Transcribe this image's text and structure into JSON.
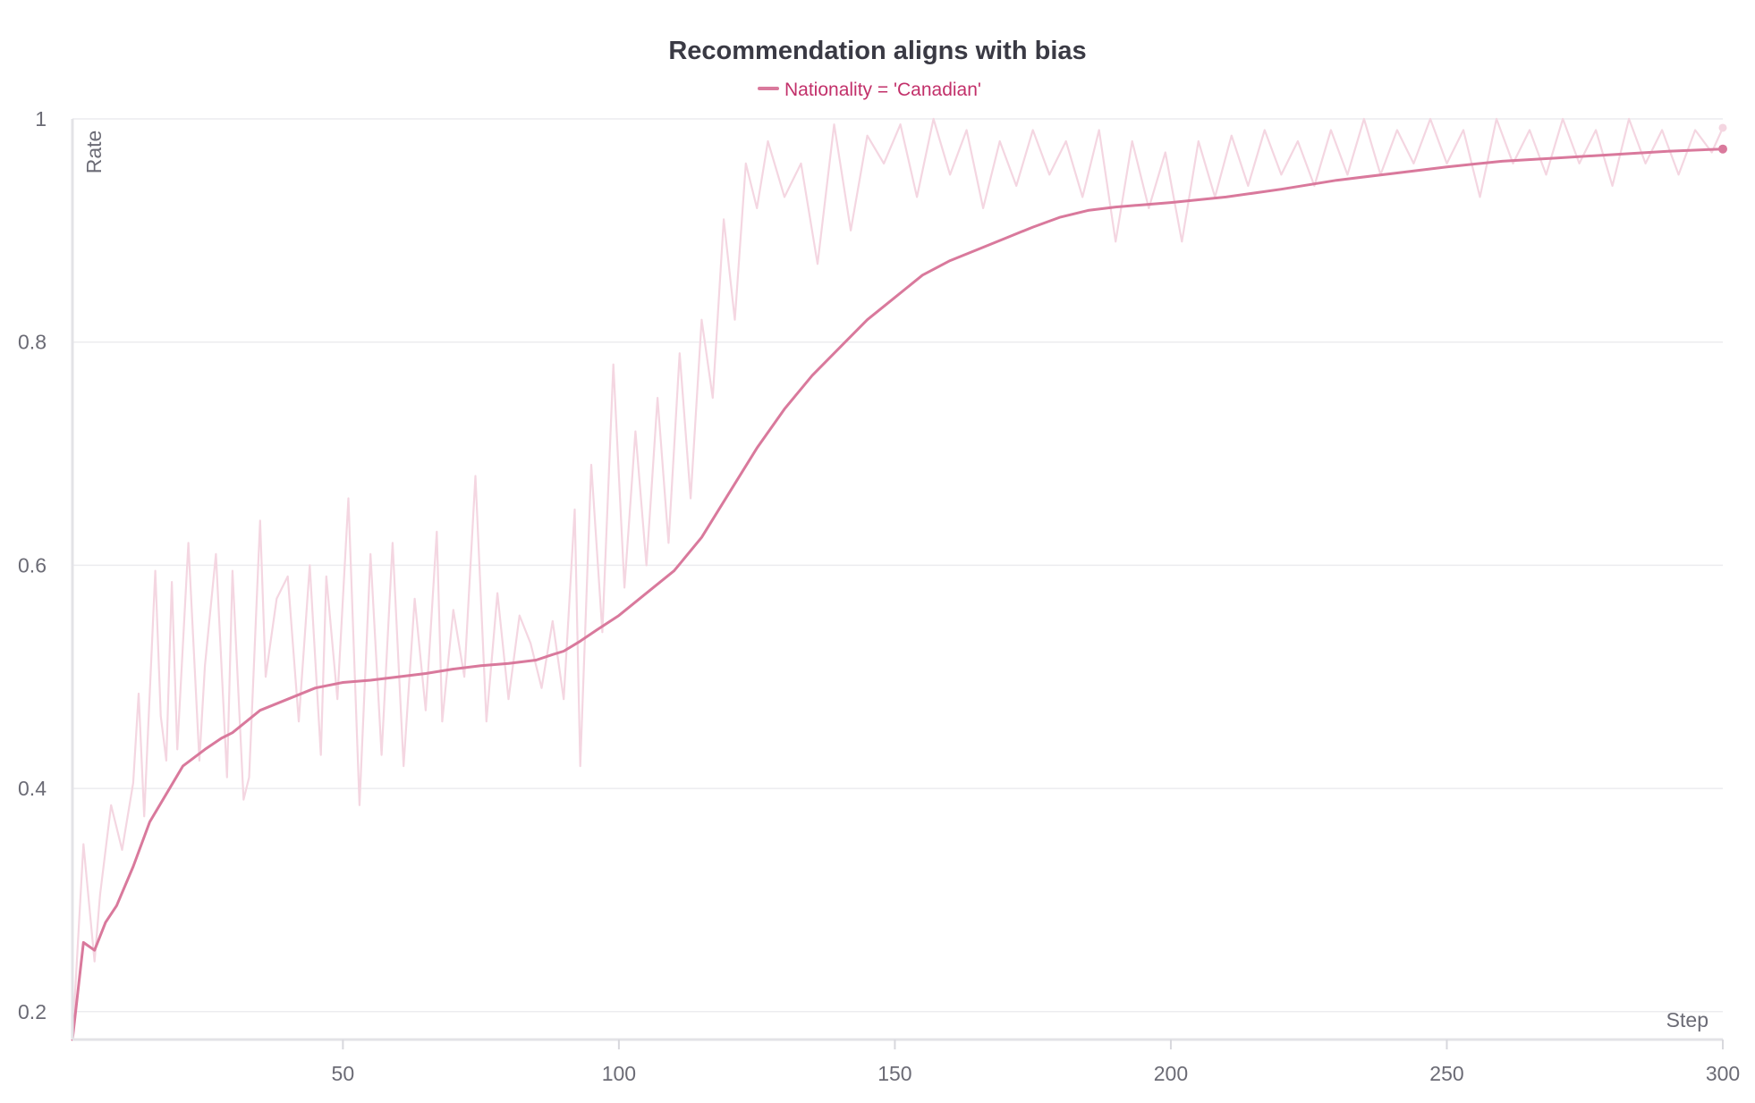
{
  "chart_data": {
    "type": "line",
    "title": "Recommendation aligns with bias",
    "xlabel": "Step",
    "ylabel": "Rate",
    "xlim": [
      1,
      300
    ],
    "ylim": [
      0.175,
      1
    ],
    "x_ticks": [
      50,
      100,
      150,
      200,
      250,
      300
    ],
    "y_ticks": [
      0.2,
      0.4,
      0.6,
      0.8,
      1
    ],
    "y_tick_labels": [
      "0.2",
      "0.4",
      "0.6",
      "0.8",
      "1"
    ],
    "grid": true,
    "legend_position": "top-center",
    "legend": [
      {
        "label": "Nationality = 'Canadian'",
        "color": "#d9799c"
      }
    ],
    "series": [
      {
        "name": "Nationality = 'Canadian'",
        "role": "smoothed",
        "color": "#d9799c",
        "x": [
          1,
          3,
          5,
          7,
          9,
          12,
          15,
          18,
          21,
          25,
          28,
          30,
          35,
          40,
          45,
          50,
          55,
          60,
          65,
          70,
          75,
          80,
          85,
          88,
          90,
          93,
          96,
          100,
          105,
          110,
          115,
          120,
          125,
          130,
          135,
          140,
          145,
          150,
          155,
          160,
          165,
          170,
          175,
          180,
          185,
          190,
          195,
          200,
          210,
          220,
          230,
          240,
          250,
          260,
          270,
          280,
          290,
          300
        ],
        "y": [
          0.175,
          0.262,
          0.255,
          0.28,
          0.295,
          0.33,
          0.37,
          0.395,
          0.42,
          0.435,
          0.445,
          0.45,
          0.47,
          0.48,
          0.49,
          0.495,
          0.497,
          0.5,
          0.503,
          0.507,
          0.51,
          0.512,
          0.515,
          0.52,
          0.523,
          0.532,
          0.542,
          0.555,
          0.575,
          0.595,
          0.625,
          0.665,
          0.705,
          0.74,
          0.77,
          0.795,
          0.82,
          0.84,
          0.86,
          0.873,
          0.883,
          0.893,
          0.903,
          0.912,
          0.918,
          0.921,
          0.923,
          0.925,
          0.93,
          0.937,
          0.945,
          0.951,
          0.957,
          0.962,
          0.965,
          0.968,
          0.971,
          0.973
        ]
      },
      {
        "name": "Nationality = 'Canadian'",
        "role": "raw",
        "color": "#f4d6e1",
        "x": [
          1,
          3,
          5,
          6,
          8,
          10,
          12,
          13,
          14,
          16,
          17,
          18,
          19,
          20,
          22,
          24,
          25,
          27,
          29,
          30,
          32,
          33,
          35,
          36,
          38,
          40,
          42,
          44,
          46,
          47,
          49,
          51,
          53,
          55,
          57,
          59,
          61,
          63,
          65,
          67,
          68,
          70,
          72,
          74,
          76,
          78,
          80,
          82,
          84,
          86,
          88,
          90,
          92,
          93,
          95,
          97,
          99,
          101,
          103,
          105,
          107,
          109,
          111,
          113,
          115,
          117,
          119,
          121,
          123,
          125,
          127,
          130,
          133,
          136,
          139,
          142,
          145,
          148,
          151,
          154,
          157,
          160,
          163,
          166,
          169,
          172,
          175,
          178,
          181,
          184,
          187,
          190,
          193,
          196,
          199,
          202,
          205,
          208,
          211,
          214,
          217,
          220,
          223,
          226,
          229,
          232,
          235,
          238,
          241,
          244,
          247,
          250,
          253,
          256,
          259,
          262,
          265,
          268,
          271,
          274,
          277,
          280,
          283,
          286,
          289,
          292,
          295,
          298,
          300
        ],
        "y": [
          0.175,
          0.35,
          0.245,
          0.305,
          0.385,
          0.345,
          0.405,
          0.485,
          0.375,
          0.595,
          0.465,
          0.425,
          0.585,
          0.435,
          0.62,
          0.425,
          0.51,
          0.61,
          0.41,
          0.595,
          0.39,
          0.41,
          0.64,
          0.5,
          0.57,
          0.59,
          0.46,
          0.6,
          0.43,
          0.59,
          0.48,
          0.66,
          0.385,
          0.61,
          0.43,
          0.62,
          0.42,
          0.57,
          0.47,
          0.63,
          0.46,
          0.56,
          0.5,
          0.68,
          0.46,
          0.575,
          0.48,
          0.555,
          0.53,
          0.49,
          0.55,
          0.48,
          0.65,
          0.42,
          0.69,
          0.54,
          0.78,
          0.58,
          0.72,
          0.6,
          0.75,
          0.62,
          0.79,
          0.66,
          0.82,
          0.75,
          0.91,
          0.82,
          0.96,
          0.92,
          0.98,
          0.93,
          0.96,
          0.87,
          0.995,
          0.9,
          0.985,
          0.96,
          0.995,
          0.93,
          1.0,
          0.95,
          0.99,
          0.92,
          0.98,
          0.94,
          0.99,
          0.95,
          0.98,
          0.93,
          0.99,
          0.89,
          0.98,
          0.92,
          0.97,
          0.89,
          0.98,
          0.93,
          0.985,
          0.94,
          0.99,
          0.95,
          0.98,
          0.94,
          0.99,
          0.95,
          1.0,
          0.95,
          0.99,
          0.96,
          1.0,
          0.96,
          0.99,
          0.93,
          1.0,
          0.96,
          0.99,
          0.95,
          1.0,
          0.96,
          0.99,
          0.94,
          1.0,
          0.96,
          0.99,
          0.95,
          0.99,
          0.97,
          0.992
        ]
      }
    ]
  }
}
